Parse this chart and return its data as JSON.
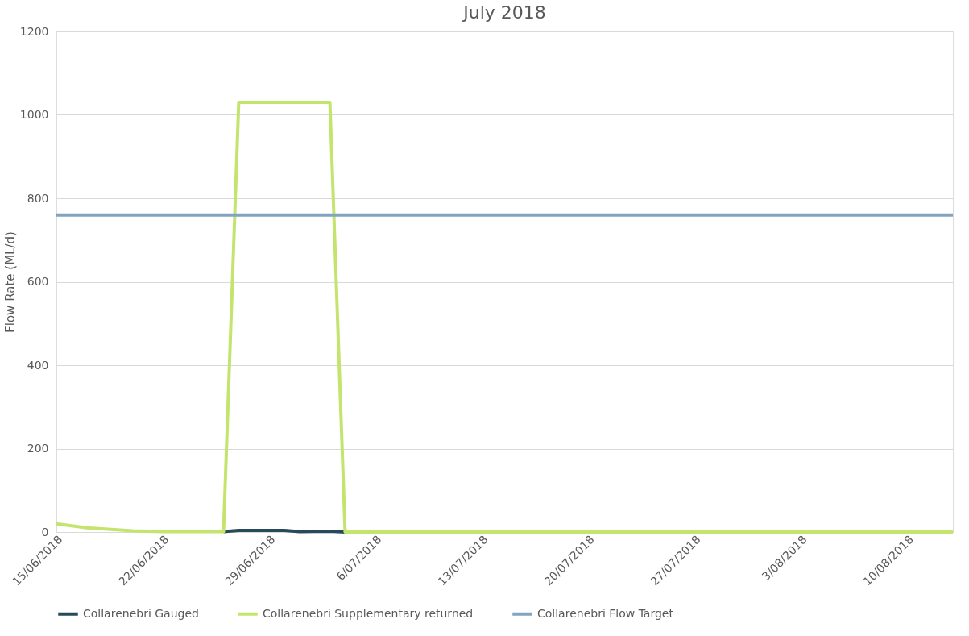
{
  "chart_data": {
    "type": "line",
    "title": "July 2018",
    "ylabel": "Flow Rate (ML/d)",
    "series": [
      {
        "name": "Collarenebri Gauged",
        "color": "#264a5a",
        "x": [
          "2018-06-26",
          "2018-06-27",
          "2018-06-30",
          "2018-07-01",
          "2018-07-03",
          "2018-07-04"
        ],
        "values": [
          1,
          4,
          4,
          1,
          2,
          0
        ]
      },
      {
        "name": "Collarenebri Supplementary returned",
        "color": "#c4e46e",
        "x": [
          "2018-06-15",
          "2018-06-17",
          "2018-06-20",
          "2018-06-22",
          "2018-06-26",
          "2018-06-27",
          "2018-07-03",
          "2018-07-04",
          "2018-08-13"
        ],
        "values": [
          20,
          10,
          3,
          1,
          1,
          1030,
          1030,
          0,
          0
        ]
      },
      {
        "name": "Collarenebri Flow Target",
        "color": "#80a4c2",
        "x": [
          "2018-06-15",
          "2018-08-13"
        ],
        "values": [
          760,
          760
        ]
      }
    ],
    "xlim": [
      "2018-06-15",
      "2018-08-13"
    ],
    "xticks": [
      {
        "value": "2018-06-15",
        "label": "15/06/2018"
      },
      {
        "value": "2018-06-22",
        "label": "22/06/2018"
      },
      {
        "value": "2018-06-29",
        "label": "29/06/2018"
      },
      {
        "value": "2018-07-06",
        "label": "6/07/2018"
      },
      {
        "value": "2018-07-13",
        "label": "13/07/2018"
      },
      {
        "value": "2018-07-20",
        "label": "20/07/2018"
      },
      {
        "value": "2018-07-27",
        "label": "27/07/2018"
      },
      {
        "value": "2018-08-03",
        "label": "3/08/2018"
      },
      {
        "value": "2018-08-10",
        "label": "10/08/2018"
      }
    ],
    "ylim": [
      0,
      1200
    ],
    "yticks": [
      0,
      200,
      400,
      600,
      800,
      1000,
      1200
    ],
    "grid": "y",
    "legend": "bottom",
    "marker": "none",
    "line_style": "solid"
  }
}
